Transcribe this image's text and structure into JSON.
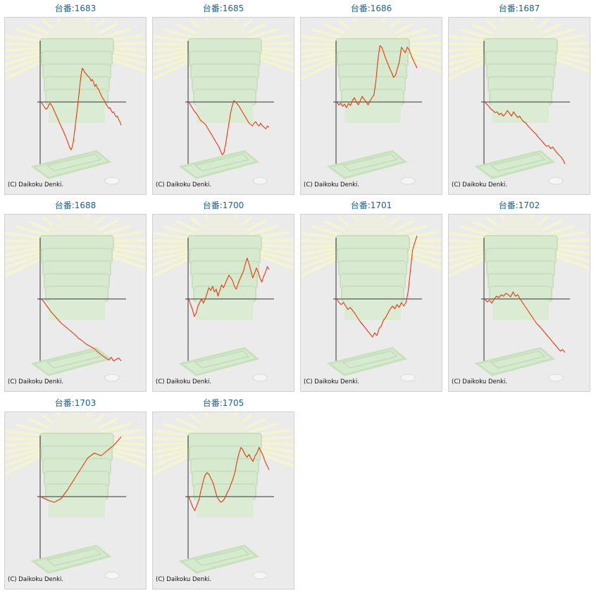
{
  "copyright": "(C) Daikoku Denki.",
  "colors": {
    "line": "#e8380a",
    "axis": "#333333",
    "title": "#1f5f8b"
  },
  "chart_data": [
    {
      "type": "line",
      "title": "台番:1683",
      "y": [
        0,
        -2,
        -5,
        -8,
        -10,
        -9,
        -6,
        -2,
        -3,
        -6,
        -10,
        -14,
        -18,
        -22,
        -26,
        -30,
        -34,
        -38,
        -42,
        -46,
        -50,
        -55,
        -60,
        -65,
        -68,
        -64,
        -55,
        -40,
        -25,
        -10,
        5,
        22,
        38,
        48,
        46,
        42,
        40,
        38,
        36,
        34,
        30,
        32,
        28,
        22,
        25,
        20,
        18,
        14,
        10,
        6,
        4,
        0,
        -3,
        -6,
        -9,
        -8,
        -12,
        -15,
        -14,
        -18,
        -21,
        -20,
        -25,
        -28,
        -33
      ]
    },
    {
      "type": "line",
      "title": "台番:1685",
      "y": [
        0,
        -4,
        -8,
        -12,
        -15,
        -18,
        -22,
        -26,
        -28,
        -30,
        -32,
        -36,
        -40,
        -44,
        -48,
        -52,
        -56,
        -60,
        -64,
        -70,
        -75,
        -72,
        -60,
        -45,
        -30,
        -15,
        -5,
        2,
        0,
        -3,
        -6,
        -10,
        -14,
        -18,
        -22,
        -26,
        -30,
        -32,
        -34,
        -30,
        -28,
        -32,
        -34,
        -30,
        -34,
        -36,
        -38,
        -34,
        -36
      ]
    },
    {
      "type": "line",
      "title": "台番:1686",
      "y": [
        0,
        -4,
        -2,
        -6,
        -3,
        -8,
        -2,
        -5,
        2,
        6,
        0,
        -4,
        2,
        8,
        4,
        0,
        -4,
        2,
        6,
        10,
        30,
        60,
        80,
        78,
        70,
        62,
        55,
        48,
        42,
        35,
        38,
        48,
        58,
        78,
        74,
        70,
        78,
        74,
        66,
        60,
        54,
        48
      ]
    },
    {
      "type": "line",
      "title": "台番:1687",
      "y": [
        0,
        -3,
        -6,
        -10,
        -12,
        -15,
        -14,
        -18,
        -16,
        -20,
        -17,
        -12,
        -16,
        -20,
        -14,
        -18,
        -22,
        -20,
        -25,
        -28,
        -30,
        -34,
        -37,
        -40,
        -43,
        -46,
        -50,
        -53,
        -56,
        -60,
        -63,
        -62,
        -66,
        -64,
        -68,
        -72,
        -75,
        -78,
        -82,
        -88
      ]
    },
    {
      "type": "line",
      "title": "台番:1688",
      "y": [
        0,
        -3,
        -8,
        -13,
        -18,
        -22,
        -26,
        -30,
        -34,
        -37,
        -40,
        -43,
        -46,
        -49,
        -52,
        -56,
        -58,
        -61,
        -64,
        -66,
        -68,
        -70,
        -73,
        -76,
        -79,
        -82,
        -84,
        -87,
        -83,
        -88,
        -86,
        -84,
        -88
      ]
    },
    {
      "type": "line",
      "title": "台番:1700",
      "y": [
        0,
        -8,
        -15,
        -25,
        -20,
        -10,
        -5,
        0,
        -6,
        0,
        8,
        16,
        12,
        18,
        10,
        14,
        4,
        12,
        20,
        16,
        22,
        28,
        34,
        30,
        26,
        18,
        14,
        22,
        28,
        34,
        40,
        50,
        58,
        50,
        40,
        30,
        36,
        44,
        38,
        30,
        24,
        32,
        38,
        46,
        42
      ]
    },
    {
      "type": "line",
      "title": "台番:1701",
      "y": [
        0,
        -5,
        -8,
        -5,
        -10,
        -15,
        -12,
        -16,
        -20,
        -25,
        -30,
        -34,
        -38,
        -42,
        -46,
        -50,
        -54,
        -48,
        -52,
        -42,
        -38,
        -30,
        -26,
        -20,
        -14,
        -10,
        -14,
        -8,
        -12,
        -5,
        -10,
        -5,
        10,
        40,
        70,
        80,
        90
      ]
    },
    {
      "type": "line",
      "title": "台番:1702",
      "y": [
        0,
        -4,
        -2,
        -6,
        0,
        4,
        2,
        6,
        4,
        8,
        6,
        3,
        10,
        4,
        6,
        0,
        -5,
        -10,
        -15,
        -20,
        -25,
        -30,
        -35,
        -38,
        -42,
        -46,
        -50,
        -54,
        -58,
        -62,
        -66,
        -70,
        -74,
        -72,
        -76
      ]
    },
    {
      "type": "line",
      "title": "台番:1703",
      "y": [
        0,
        -5,
        -8,
        -3,
        10,
        25,
        40,
        55,
        62,
        58,
        66,
        74,
        85
      ]
    },
    {
      "type": "line",
      "title": "台番:1705",
      "y": [
        0,
        -8,
        -15,
        -20,
        -12,
        -5,
        8,
        20,
        30,
        34,
        32,
        26,
        20,
        10,
        0,
        -5,
        -8,
        -6,
        -2,
        5,
        10,
        18,
        25,
        35,
        50,
        62,
        70,
        66,
        60,
        56,
        60,
        54,
        50,
        58,
        62,
        70,
        64,
        58,
        50,
        44,
        38
      ]
    }
  ]
}
